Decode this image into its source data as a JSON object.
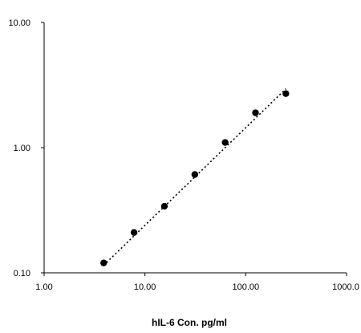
{
  "chart_data": {
    "type": "scatter",
    "title": "",
    "xlabel": "hIL-6 Con. pg/ml",
    "ylabel": "",
    "x_scale": "log",
    "y_scale": "log",
    "xlim": [
      1,
      1000
    ],
    "ylim": [
      0.1,
      10
    ],
    "x_ticks": [
      1,
      10,
      100,
      1000
    ],
    "y_ticks": [
      0.1,
      1,
      10
    ],
    "x_tick_labels": [
      "1.00",
      "10.00",
      "100.00",
      "1000.0"
    ],
    "y_tick_labels": [
      "0.10",
      "1.00",
      "10.00"
    ],
    "grid": false,
    "legend": "none",
    "series": [
      {
        "x": [
          3.9,
          7.8,
          15.6,
          31.25,
          62.5,
          125,
          250
        ],
        "y": [
          0.12,
          0.21,
          0.34,
          0.61,
          1.1,
          1.9,
          2.7
        ]
      }
    ],
    "trendline": {
      "style": "dotted",
      "x_range": [
        3.9,
        250
      ],
      "y_range": [
        0.115,
        2.95
      ]
    },
    "colors": {
      "marker": "#000000",
      "axis": "#000000"
    }
  }
}
